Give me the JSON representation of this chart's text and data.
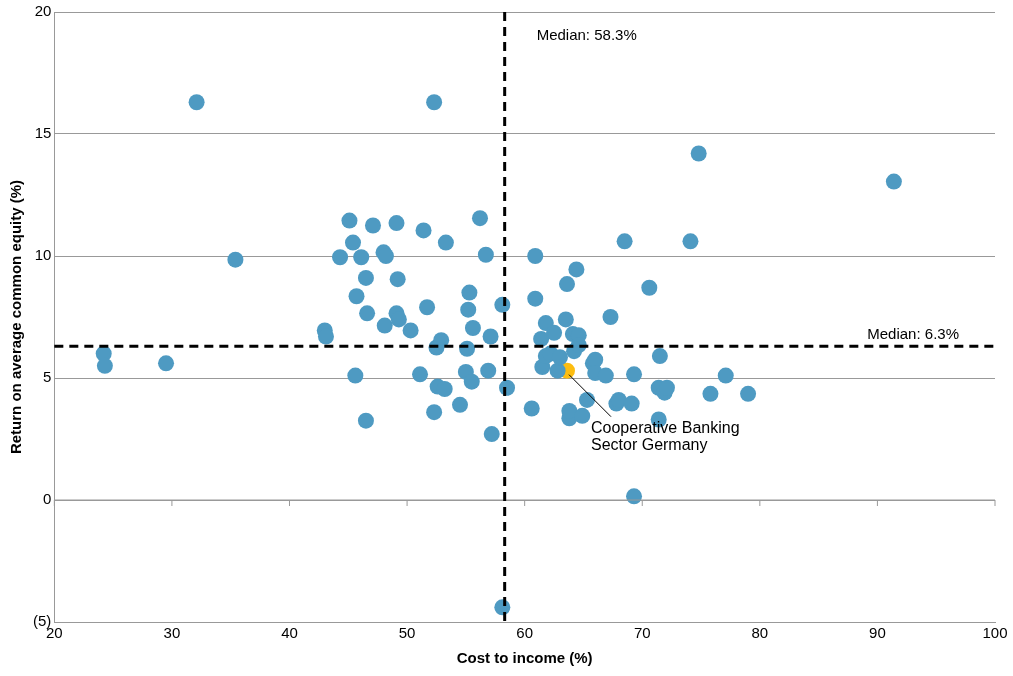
{
  "chart_data": {
    "type": "scatter",
    "xlabel": "Cost to income (%)",
    "ylabel": "Return on average common equity (%)",
    "xlim": [
      20,
      100
    ],
    "xticks": [
      20,
      30,
      40,
      50,
      60,
      70,
      80,
      90,
      100
    ],
    "ylim": [
      -5,
      20
    ],
    "yticks": [
      {
        "value": -5,
        "label": "(5)"
      },
      0,
      5,
      10,
      15,
      20
    ],
    "grid": "y",
    "legend": false,
    "marker": "circle",
    "series": [
      {
        "color": "#4e9ac2",
        "x": [
          24.2,
          24.3,
          29.5,
          32.1,
          35.4,
          43,
          43.1,
          44.3,
          45.1,
          45.4,
          45.6,
          45.7,
          46.1,
          46.5,
          46.6,
          46.5,
          47.1,
          48.0,
          48.2,
          48.1,
          49.1,
          49.1,
          49.2,
          49.3,
          50.3,
          51.1,
          51.4,
          51.7,
          52.3,
          52.3,
          52.6,
          52.5,
          52.9,
          53.2,
          53.3,
          54.5,
          55.0,
          55.1,
          55.2,
          55.3,
          55.5,
          55.6,
          56.2,
          56.7,
          56.9,
          57.1,
          57.2,
          58.1,
          58.1,
          58.5,
          60.6,
          60.9,
          60.9,
          61.4,
          61.5,
          61.8,
          61.8,
          62.2,
          62.5,
          62.8,
          63.0,
          63.5,
          63.6,
          63.8,
          63.8,
          64.1,
          64.2,
          64.4,
          64.6,
          64.6,
          64.9,
          65.3,
          65.8,
          66.0,
          66.0,
          66.9,
          67.3,
          67.8,
          68.0,
          68.5,
          69.1,
          69.3,
          69.3,
          70.6,
          71.4,
          71.4,
          71.5,
          71.9,
          72.1,
          74.1,
          74.8,
          75.8,
          77.1,
          79.0,
          91.4
        ],
        "values": [
          6.0,
          5.5,
          5.6,
          16.3,
          9.85,
          6.95,
          6.7,
          9.95,
          11.45,
          10.55,
          5.1,
          8.35,
          9.95,
          9.1,
          7.65,
          3.25,
          11.25,
          10.15,
          10.0,
          7.15,
          11.35,
          7.65,
          9.05,
          7.4,
          6.95,
          5.15,
          11.05,
          7.9,
          16.3,
          3.6,
          4.65,
          6.25,
          6.55,
          4.55,
          10.55,
          3.9,
          5.25,
          6.2,
          7.8,
          8.5,
          4.85,
          7.05,
          11.55,
          10.05,
          5.3,
          6.7,
          2.7,
          -4.4,
          8.0,
          4.6,
          3.75,
          10.0,
          8.25,
          6.6,
          5.45,
          7.25,
          5.9,
          6.0,
          6.85,
          5.3,
          5.85,
          7.4,
          8.85,
          3.35,
          3.65,
          6.8,
          6.1,
          9.45,
          6.75,
          6.35,
          3.45,
          4.1,
          5.6,
          5.75,
          5.2,
          5.1,
          7.5,
          3.95,
          4.1,
          10.6,
          3.95,
          5.15,
          0.15,
          8.7,
          4.6,
          3.3,
          5.9,
          4.4,
          4.6,
          10.6,
          14.2,
          4.35,
          5.1,
          4.35,
          13.05
        ]
      },
      {
        "color": "#fdbd10",
        "x": [
          63.6
        ],
        "values": [
          5.3
        ]
      }
    ],
    "ref_lines": [
      {
        "axis": "x",
        "value": 58.3,
        "label": "Median: 58.3%",
        "color": "#000000",
        "line_style": "dashed"
      },
      {
        "axis": "y",
        "value": 6.3,
        "label": "Median: 6.3%",
        "color": "#000000",
        "line_style": "dashed"
      }
    ],
    "annotations": [
      {
        "text": "Cooperative Banking\nSector Germany",
        "x": 63.6,
        "y": 5.3
      }
    ]
  }
}
